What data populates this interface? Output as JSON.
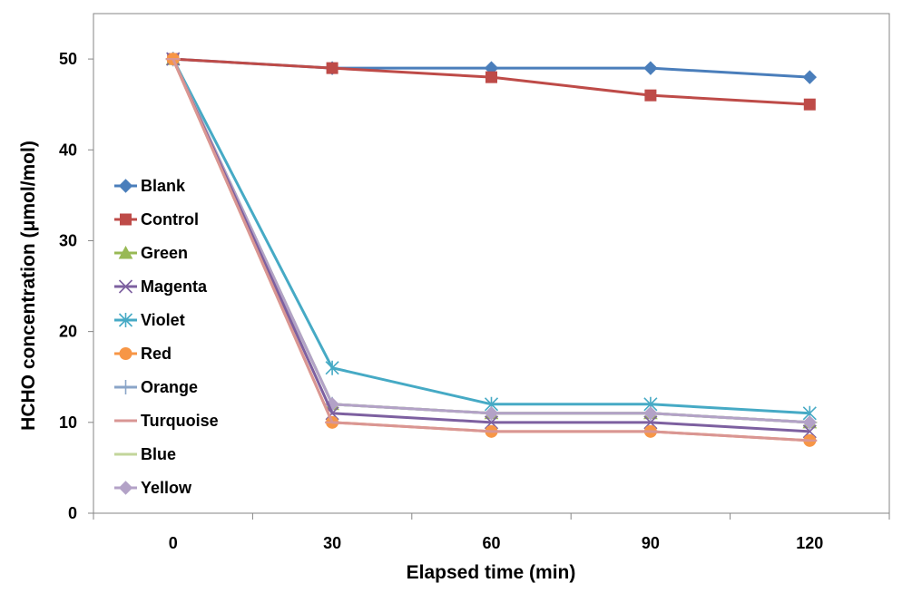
{
  "chart_data": {
    "type": "line",
    "title": "",
    "xlabel": "Elapsed time (min)",
    "ylabel": "HCHO concentration (μmol/mol)",
    "x": [
      0,
      30,
      60,
      90,
      120
    ],
    "xticks": [
      "0",
      "30",
      "60",
      "90",
      "120"
    ],
    "yticks": [
      "0",
      "10",
      "20",
      "30",
      "40",
      "50"
    ],
    "xlim": [
      -15,
      135
    ],
    "ylim": [
      0,
      55
    ],
    "grid": false,
    "legend_position": "left-inside",
    "series": [
      {
        "name": "Blank",
        "color": "#4a7ebb",
        "marker": "diamond",
        "values": [
          50,
          49,
          49,
          49,
          48
        ]
      },
      {
        "name": "Control",
        "color": "#be4b48",
        "marker": "square",
        "values": [
          50,
          49,
          48,
          46,
          45
        ]
      },
      {
        "name": "Green",
        "color": "#98b954",
        "marker": "triangle",
        "values": [
          50,
          12,
          11,
          11,
          10
        ]
      },
      {
        "name": "Magenta",
        "color": "#7d60a0",
        "marker": "x",
        "values": [
          50,
          11,
          10,
          10,
          9
        ]
      },
      {
        "name": "Violet",
        "color": "#46aac5",
        "marker": "asterisk",
        "values": [
          50,
          16,
          12,
          12,
          11
        ]
      },
      {
        "name": "Red",
        "color": "#f79646",
        "marker": "circle",
        "values": [
          50,
          10,
          9,
          9,
          8
        ]
      },
      {
        "name": "Orange",
        "color": "#8aa5c8",
        "marker": "plus",
        "values": [
          50,
          12,
          11,
          11,
          10
        ]
      },
      {
        "name": "Turquoise",
        "color": "#d99694",
        "marker": "dash",
        "values": [
          50,
          10,
          9,
          9,
          8
        ]
      },
      {
        "name": "Blue",
        "color": "#c3d69b",
        "marker": "line",
        "values": [
          50,
          12,
          11,
          11,
          10
        ]
      },
      {
        "name": "Yellow",
        "color": "#b3a2c7",
        "marker": "diamond",
        "values": [
          50,
          12,
          11,
          11,
          10
        ]
      }
    ]
  }
}
